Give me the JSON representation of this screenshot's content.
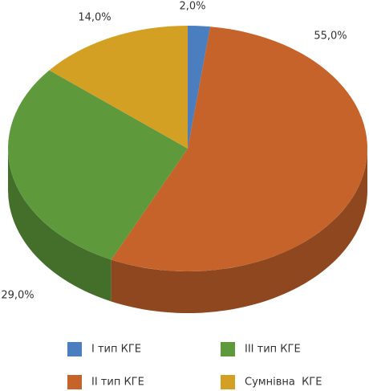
{
  "chart_data": {
    "type": "pie",
    "categories": [
      "І тип КГЕ",
      "ІІ тип КГЕ",
      "ІІІ тип КГЕ",
      "Сумнівна  КГЕ"
    ],
    "values": [
      2.0,
      55.0,
      29.0,
      14.0
    ],
    "value_labels": [
      "2,0%",
      "55,0%",
      "29,0%",
      "14,0%"
    ],
    "colors": [
      "#4a7ebf",
      "#c5632a",
      "#5e9a3c",
      "#d3a023"
    ],
    "legend": "bottom"
  }
}
